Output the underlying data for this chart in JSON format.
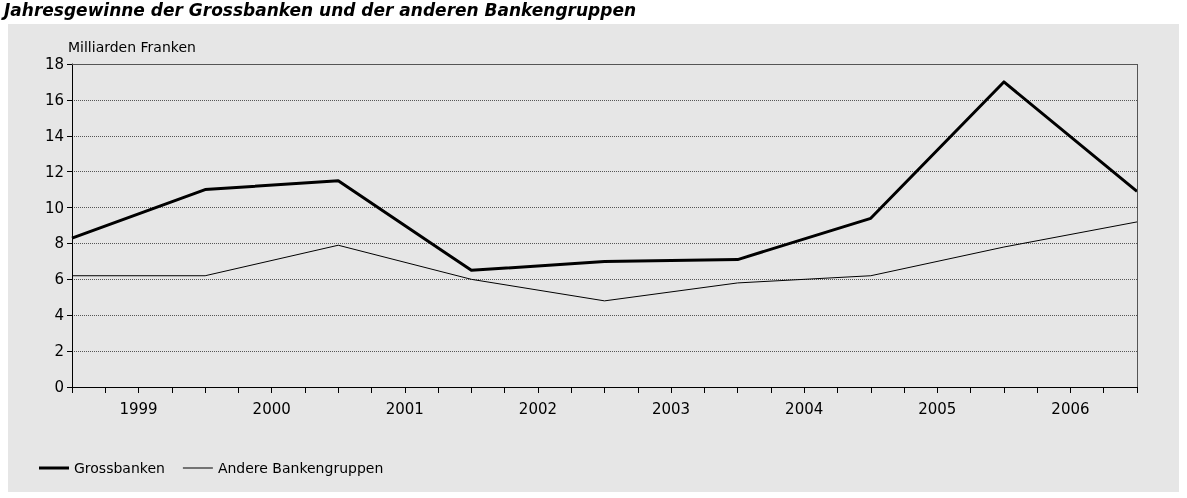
{
  "chart_data": {
    "type": "line",
    "title": "Jahresgewinne der Grossbanken und der anderen Bankengruppen",
    "ylabel": "Milliarden Franken",
    "x": [
      1999,
      2000,
      2001,
      2002,
      2003,
      2004,
      2005,
      2006,
      2007
    ],
    "series": [
      {
        "name": "Grossbanken",
        "color": "#000000",
        "values": [
          8.3,
          11.0,
          11.5,
          6.5,
          7.0,
          7.1,
          9.4,
          17.0,
          10.9
        ]
      },
      {
        "name": "Andere Bankengruppen",
        "color": "#000000",
        "values": [
          6.2,
          6.2,
          7.9,
          6.0,
          4.8,
          5.8,
          6.2,
          7.8,
          9.2
        ]
      }
    ],
    "xlim": [
      1999,
      2007
    ],
    "xticks": [
      {
        "value": 1999,
        "label": null
      },
      {
        "value": 1999.25,
        "label": null
      },
      {
        "value": 1999.5,
        "label": "1999"
      },
      {
        "value": 1999.75,
        "label": null
      },
      {
        "value": 2000,
        "label": null
      },
      {
        "value": 2000.25,
        "label": null
      },
      {
        "value": 2000.5,
        "label": "2000"
      },
      {
        "value": 2000.75,
        "label": null
      },
      {
        "value": 2001,
        "label": null
      },
      {
        "value": 2001.25,
        "label": null
      },
      {
        "value": 2001.5,
        "label": "2001"
      },
      {
        "value": 2001.75,
        "label": null
      },
      {
        "value": 2002,
        "label": null
      },
      {
        "value": 2002.25,
        "label": null
      },
      {
        "value": 2002.5,
        "label": "2002"
      },
      {
        "value": 2002.75,
        "label": null
      },
      {
        "value": 2003,
        "label": null
      },
      {
        "value": 2003.25,
        "label": null
      },
      {
        "value": 2003.5,
        "label": "2003"
      },
      {
        "value": 2003.75,
        "label": null
      },
      {
        "value": 2004,
        "label": null
      },
      {
        "value": 2004.25,
        "label": null
      },
      {
        "value": 2004.5,
        "label": "2004"
      },
      {
        "value": 2004.75,
        "label": null
      },
      {
        "value": 2005,
        "label": null
      },
      {
        "value": 2005.25,
        "label": null
      },
      {
        "value": 2005.5,
        "label": "2005"
      },
      {
        "value": 2005.75,
        "label": null
      },
      {
        "value": 2006,
        "label": null
      },
      {
        "value": 2006.25,
        "label": null
      },
      {
        "value": 2006.5,
        "label": "2006"
      },
      {
        "value": 2006.75,
        "label": null
      },
      {
        "value": 2007,
        "label": null
      }
    ],
    "ylim": [
      0,
      18
    ],
    "yticks": [
      0,
      2,
      4,
      6,
      8,
      10,
      12,
      14,
      16,
      18
    ],
    "grid": "y",
    "legend": "bottom left",
    "marker": "none",
    "line_style": "solid"
  }
}
